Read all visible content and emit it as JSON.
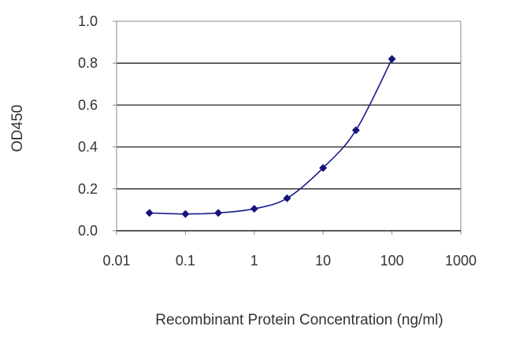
{
  "chart_data": {
    "type": "line",
    "title": "",
    "xlabel": "Recombinant Protein Concentration (ng/ml)",
    "ylabel": "OD450",
    "x_scale": "log",
    "xlim": [
      0.01,
      1000
    ],
    "ylim": [
      0.0,
      1.0
    ],
    "x_tick_labels": [
      "0.01",
      "0.1",
      "1",
      "10",
      "100",
      "1000"
    ],
    "y_tick_labels": [
      "0.0",
      "0.2",
      "0.4",
      "0.6",
      "0.8",
      "1.0"
    ],
    "grid": "horizontal",
    "legend": "none",
    "series": [
      {
        "x": [
          0.03,
          0.1,
          0.3,
          1,
          3,
          10,
          30,
          100
        ],
        "y": [
          0.085,
          0.08,
          0.085,
          0.105,
          0.155,
          0.3,
          0.48,
          0.82
        ]
      }
    ],
    "colors": {
      "series": "#1a1a8c",
      "marker": "#14147a",
      "grid": "#222222",
      "axis": "#888888"
    }
  }
}
